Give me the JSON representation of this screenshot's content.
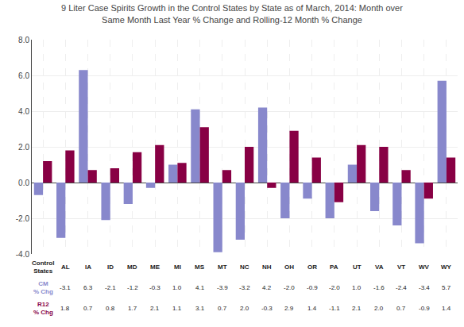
{
  "chart_data": {
    "type": "bar",
    "title": "9 Liter Case Spirits Growth in the Control States by State as of March, 2014: Month over\nSame Month Last Year % Change and Rolling-12 Month % Change",
    "categories": [
      "Control\nStates",
      "AL",
      "IA",
      "ID",
      "MD",
      "ME",
      "MI",
      "MS",
      "MT",
      "NC",
      "NH",
      "OH",
      "OR",
      "PA",
      "UT",
      "VA",
      "VT",
      "WV",
      "WY"
    ],
    "series": [
      {
        "name": "CM % Chg",
        "color": "#8888cc",
        "values": [
          -0.7,
          -3.1,
          6.3,
          -2.1,
          -1.2,
          -0.3,
          1.0,
          4.1,
          -3.9,
          -3.2,
          4.2,
          -2.0,
          -0.9,
          -2.0,
          1.0,
          -1.6,
          -2.4,
          -3.4,
          5.7
        ]
      },
      {
        "name": "R12 % Chg",
        "color": "#880044",
        "values": [
          1.2,
          1.8,
          0.7,
          0.8,
          1.7,
          2.1,
          1.1,
          3.1,
          0.7,
          2.0,
          -0.3,
          2.9,
          1.4,
          -1.1,
          2.1,
          2.0,
          0.7,
          -0.9,
          1.4
        ]
      }
    ],
    "ylim": [
      -4.0,
      8.0
    ],
    "yticks": [
      {
        "value": -4.0,
        "label": "-4.0"
      },
      {
        "value": -2.0,
        "label": "-2.0"
      },
      {
        "value": 0.0,
        "label": "0.0"
      },
      {
        "value": 2.0,
        "label": "2.0"
      },
      {
        "value": 4.0,
        "label": "4.0"
      },
      {
        "value": 6.0,
        "label": "6.0"
      },
      {
        "value": 8.0,
        "label": "8.0"
      }
    ],
    "grid": true
  }
}
